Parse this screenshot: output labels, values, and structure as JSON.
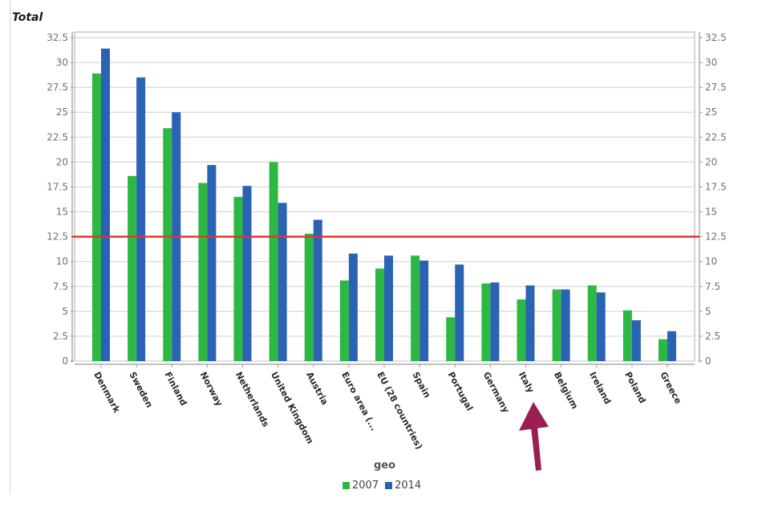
{
  "chart_data": {
    "type": "bar",
    "title": "Total",
    "xlabel": "geo",
    "ylabel": "",
    "ylim": [
      0,
      32.5
    ],
    "yticks": [
      0,
      2.5,
      5,
      7.5,
      10,
      12.5,
      15,
      17.5,
      20,
      22.5,
      25,
      27.5,
      30,
      32.5
    ],
    "ytick_labels": [
      "0",
      "2.5",
      "5",
      "7.5",
      "10",
      "12.5",
      "15",
      "17.5",
      "20",
      "22.5",
      "25",
      "27.5",
      "30",
      "32.5"
    ],
    "grid": true,
    "dual_y_axis": true,
    "legend_position": "bottom",
    "categories": [
      "Denmark",
      "Sweden",
      "Finland",
      "Norway",
      "Netherlands",
      "United Kingdom",
      "Austria",
      "Euro area (...",
      "EU (28 countries)",
      "Spain",
      "Portugal",
      "Germany",
      "Italy",
      "Belgium",
      "Ireland",
      "Poland",
      "Greece"
    ],
    "series": [
      {
        "name": "2007",
        "color": "#2db843",
        "values": [
          28.9,
          18.6,
          23.4,
          17.9,
          16.5,
          20.0,
          12.8,
          8.1,
          9.3,
          10.6,
          4.4,
          7.8,
          6.2,
          7.2,
          7.6,
          5.1,
          2.2
        ]
      },
      {
        "name": "2014",
        "color": "#2a63b3",
        "values": [
          31.4,
          28.5,
          25.0,
          19.7,
          17.6,
          15.9,
          14.2,
          10.8,
          10.6,
          10.1,
          9.7,
          7.9,
          7.6,
          7.2,
          6.9,
          4.1,
          3.0
        ]
      }
    ],
    "reference_line": {
      "value": 12.5,
      "color": "#e8332e"
    },
    "annotations": [
      {
        "type": "arrow",
        "points_to": "Italy",
        "color": "#9b1d52"
      }
    ]
  },
  "page": {
    "corner_mark": "⸾",
    "title": "Total",
    "axis_title": "geo",
    "legend": [
      {
        "label": "2007",
        "color": "#2db843"
      },
      {
        "label": "2014",
        "color": "#2a63b3"
      }
    ]
  }
}
